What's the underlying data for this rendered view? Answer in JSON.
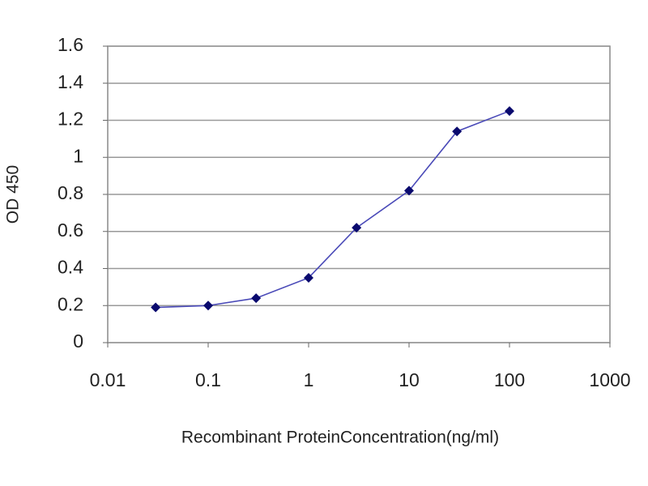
{
  "chart_data": {
    "type": "line",
    "x_label": "Recombinant ProteinConcentration(ng/ml)",
    "y_label": "OD 450",
    "x": [
      0.03,
      0.1,
      0.3,
      1,
      3,
      10,
      30,
      100
    ],
    "values": [
      0.19,
      0.2,
      0.24,
      0.35,
      0.62,
      0.82,
      1.14,
      1.25
    ],
    "color": "#4a4ab8",
    "marker_color": "#0a0a6e",
    "xscale": "log",
    "xlim": [
      0.01,
      1000
    ],
    "xticks": [
      0.01,
      0.1,
      1,
      10,
      100,
      1000
    ],
    "ylim": [
      0,
      1.6
    ],
    "yticks": [
      0,
      0.2,
      0.4,
      0.6,
      0.8,
      1,
      1.2,
      1.4,
      1.6
    ],
    "grid": true
  }
}
